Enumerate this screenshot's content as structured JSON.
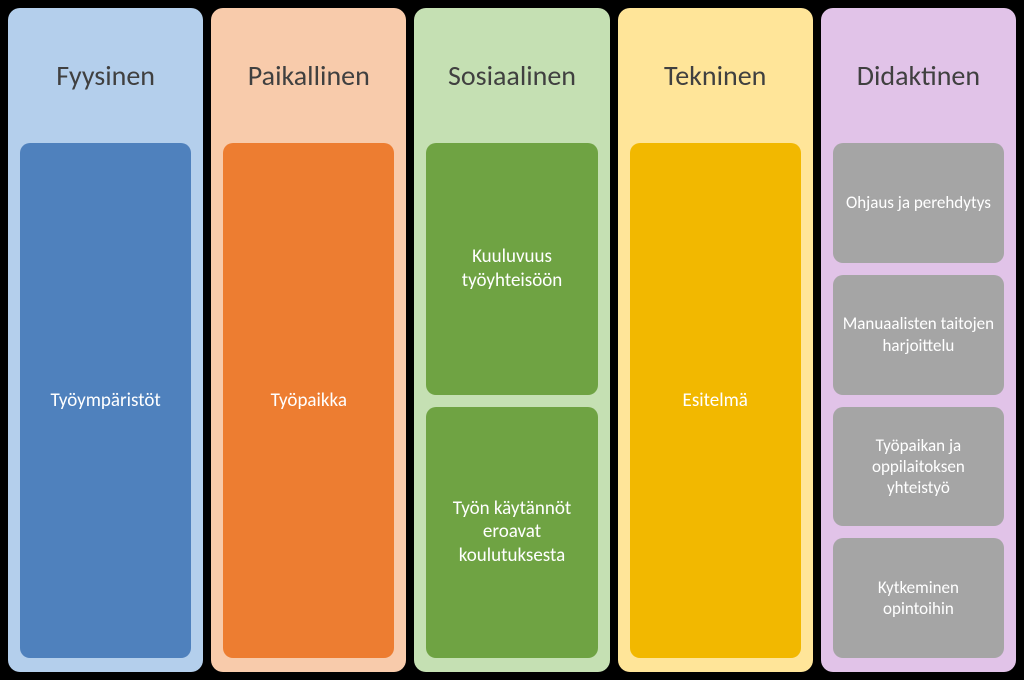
{
  "diagram": {
    "type": "infographic",
    "background_color": "#000000",
    "title_fontsize": 28,
    "title_color": "#404040",
    "card_text_color": "#ffffff",
    "card_fontsize": 19,
    "small_card_fontsize": 17,
    "border_radius": 12,
    "card_border_radius": 10,
    "columns": [
      {
        "title": "Fyysinen",
        "bg_color": "#b4cfec",
        "card_color": "#4f81bd",
        "layout": "single",
        "cards": [
          {
            "label": "Työympäristöt"
          }
        ]
      },
      {
        "title": "Paikallinen",
        "bg_color": "#f8cbab",
        "card_color": "#ed7d31",
        "layout": "single",
        "cards": [
          {
            "label": "Työpaikka"
          }
        ]
      },
      {
        "title": "Sosiaalinen",
        "bg_color": "#c5e0b3",
        "card_color": "#6fa343",
        "layout": "half",
        "cards": [
          {
            "label": "Kuuluvuus työyhteisöön"
          },
          {
            "label": "Työn käytännöt eroavat koulutuksesta"
          }
        ]
      },
      {
        "title": "Tekninen",
        "bg_color": "#ffe599",
        "card_color": "#f2b800",
        "layout": "single",
        "cards": [
          {
            "label": "Esitelmä"
          }
        ]
      },
      {
        "title": "Didaktinen",
        "bg_color": "#e1c3e8",
        "card_color": "#a5a5a5",
        "layout": "quarter",
        "cards": [
          {
            "label": "Ohjaus ja perehdytys"
          },
          {
            "label": "Manuaalisten taitojen harjoittelu"
          },
          {
            "label": "Työpaikan ja oppilaitoksen yhteistyö"
          },
          {
            "label": "Kytkeminen opintoihin"
          }
        ]
      }
    ]
  }
}
